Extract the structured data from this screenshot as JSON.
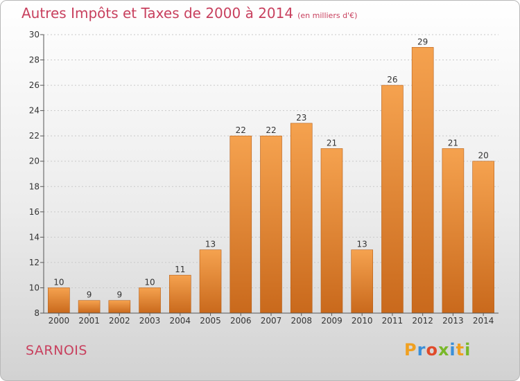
{
  "header": {
    "title": "Autres Impôts et Taxes de 2000 à 2014",
    "subtitle": "(en milliers d'€)"
  },
  "commune": "SARNOIS",
  "logo": {
    "text": "Proxiti",
    "colors": [
      "#f0a020",
      "#3a8fd8",
      "#e04a2a",
      "#79b829",
      "#3a8fd8",
      "#f0a020",
      "#79b829"
    ]
  },
  "colors": {
    "bar_top": "#f5a24f",
    "bar_bottom": "#c9691c",
    "bar_edge": "#b65e17",
    "axis": "#555555",
    "grid": "#c8c8c8"
  },
  "chart_data": {
    "type": "bar",
    "title": "Autres Impôts et Taxes de 2000 à 2014",
    "subtitle": "(en milliers d'€)",
    "categories": [
      "2000",
      "2001",
      "2002",
      "2003",
      "2004",
      "2005",
      "2006",
      "2007",
      "2008",
      "2009",
      "2010",
      "2011",
      "2012",
      "2013",
      "2014"
    ],
    "values": [
      10,
      9,
      9,
      10,
      11,
      13,
      22,
      22,
      23,
      21,
      13,
      26,
      29,
      21,
      20
    ],
    "ylim": [
      8,
      30
    ],
    "yticks": [
      8,
      10,
      12,
      14,
      16,
      18,
      20,
      22,
      24,
      26,
      28,
      30
    ],
    "grid": true,
    "legend": "none"
  }
}
